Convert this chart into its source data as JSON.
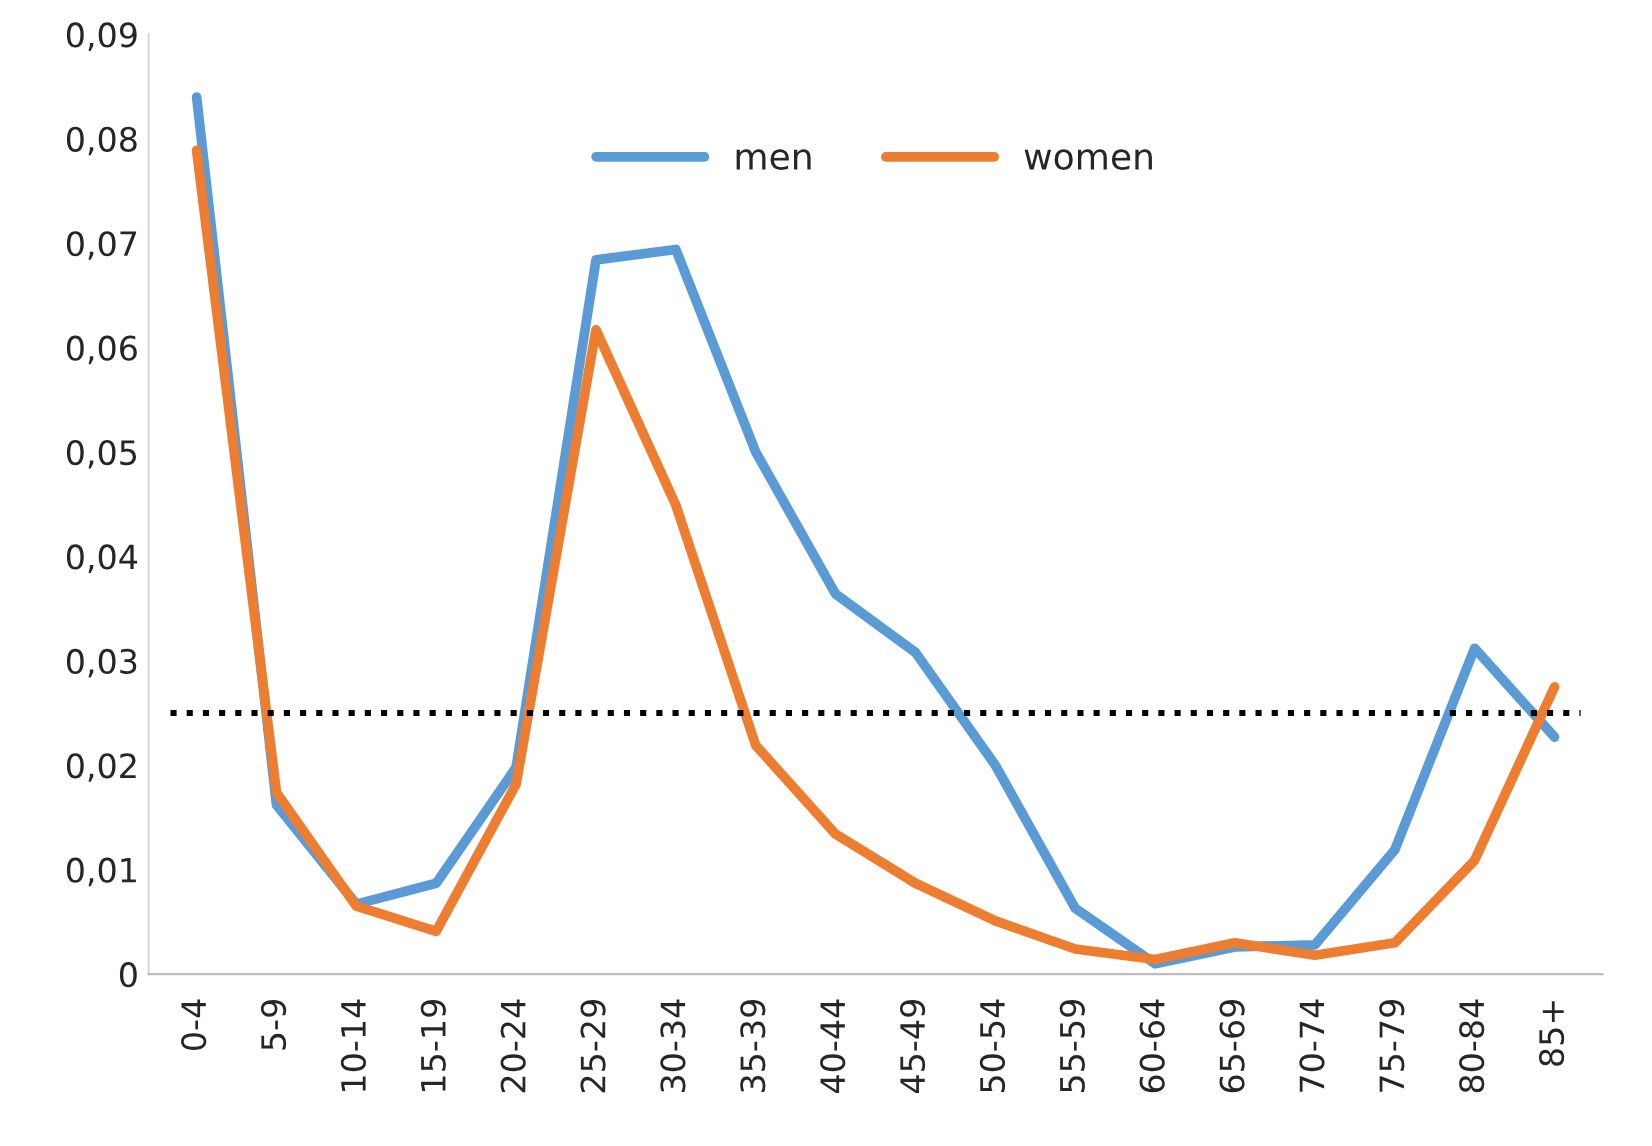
{
  "chart_data": {
    "type": "line",
    "categories": [
      "0-4",
      "5-9",
      "10-14",
      "15-19",
      "20-24",
      "25-29",
      "30-34",
      "35-39",
      "40-44",
      "45-49",
      "50-54",
      "55-59",
      "60-64",
      "65-69",
      "70-74",
      "75-79",
      "80-84",
      "85+"
    ],
    "series": [
      {
        "name": "men",
        "color": "#5b9bd5",
        "values": [
          0.084,
          0.0162,
          0.0067,
          0.0087,
          0.0198,
          0.0684,
          0.0694,
          0.05,
          0.0364,
          0.0308,
          0.02,
          0.0063,
          0.001,
          0.0026,
          0.0028,
          0.0119,
          0.0312,
          0.0227
        ]
      },
      {
        "name": "women",
        "color": "#ed7d31",
        "values": [
          0.0789,
          0.0174,
          0.0065,
          0.0041,
          0.0182,
          0.0617,
          0.0449,
          0.0219,
          0.0134,
          0.0087,
          0.0051,
          0.0024,
          0.0014,
          0.003,
          0.0018,
          0.003,
          0.0109,
          0.0275
        ]
      }
    ],
    "ylim": [
      0,
      0.09
    ],
    "yticks": [
      0,
      {
        "value": 0.01,
        "label": "0,01"
      },
      {
        "value": 0.02,
        "label": "0,02"
      },
      {
        "value": 0.03,
        "label": "0,03"
      },
      {
        "value": 0.04,
        "label": "0,04"
      },
      {
        "value": 0.05,
        "label": "0,05"
      },
      {
        "value": 0.06,
        "label": "0,06"
      },
      {
        "value": 0.07,
        "label": "0,07"
      },
      {
        "value": 0.08,
        "label": "0,08"
      },
      {
        "value": 0.09,
        "label": "0,09"
      }
    ],
    "ref_lines": [
      {
        "axis": "y",
        "value": 0.025,
        "color": "#000000",
        "line_style": "dotted"
      }
    ],
    "legend": "top",
    "grid": false,
    "marker": "none",
    "line_style": "solid"
  }
}
